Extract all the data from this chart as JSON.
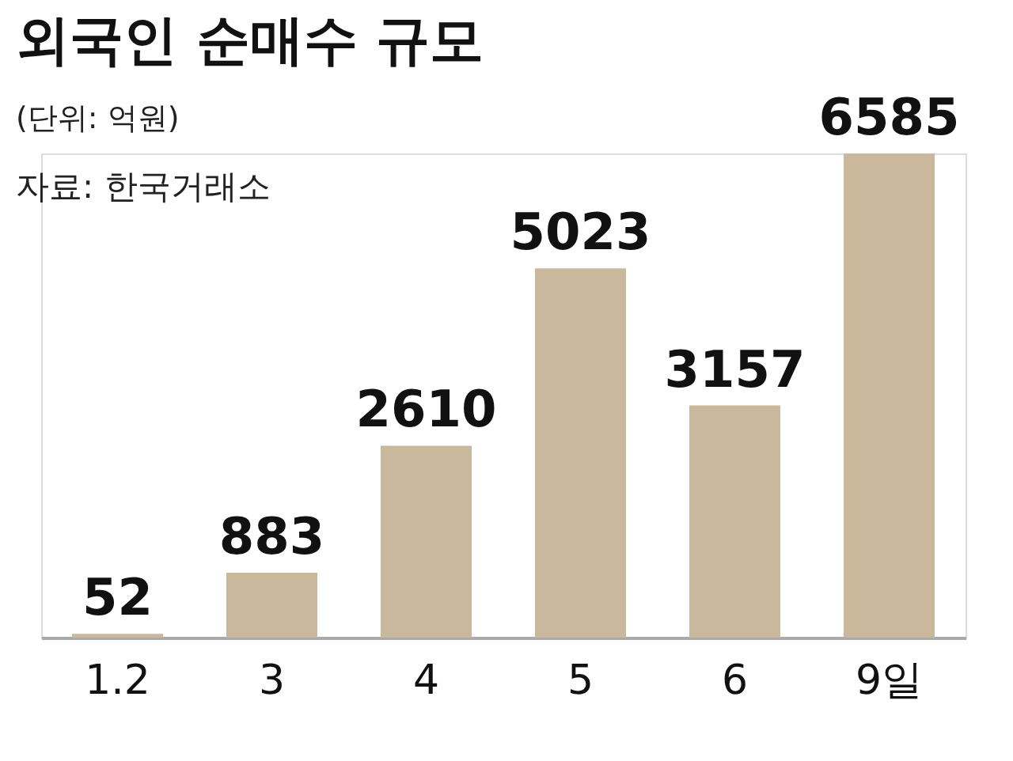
{
  "chart_data": {
    "type": "bar",
    "title": "외국인 순매수 규모",
    "subtitle": "(단위: 억원)",
    "annotations": [
      "자료: 한국거래소"
    ],
    "categories": [
      "1.2",
      "3",
      "4",
      "5",
      "6",
      "9일"
    ],
    "values": [
      52,
      883,
      2610,
      5023,
      3157,
      6585
    ],
    "color": "#c9b89b",
    "data_labels": true
  }
}
